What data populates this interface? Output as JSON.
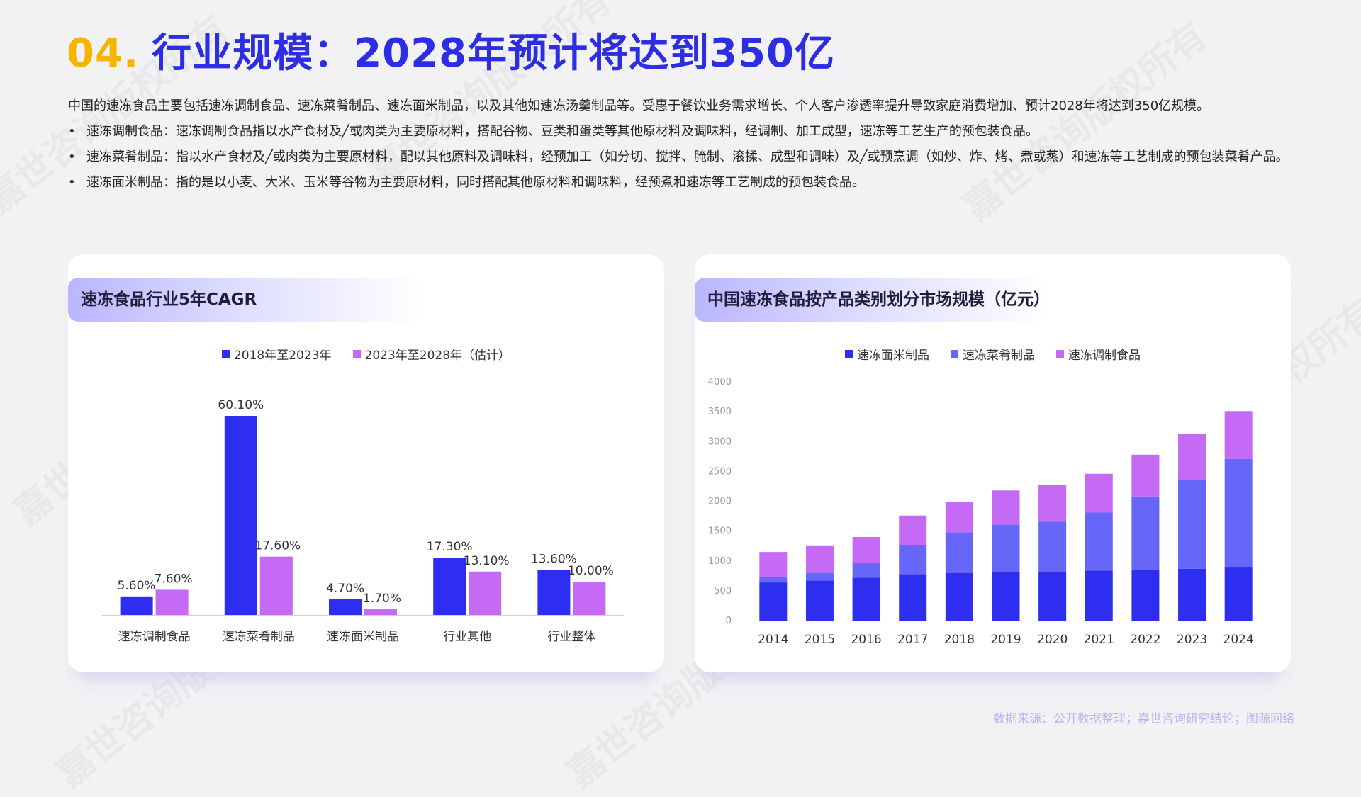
{
  "header": {
    "number": "04.",
    "title": "行业规模：2028年预计将达到350亿"
  },
  "intro": {
    "paragraph": "中国的速冻食品主要包括速冻调制食品、速冻菜肴制品、速冻面米制品，以及其他如速冻汤羹制品等。受惠于餐饮业务需求增长、个人客户渗透率提升导致家庭消费增加、预计2028年将达到350亿规模。",
    "bullets": [
      "速冻调制食品：速冻调制食品指以水产食材及╱或肉类为主要原材料，搭配谷物、豆类和蛋类等其他原材料及调味料，经调制、加工成型，速冻等工艺生产的预包装食品。",
      "速冻菜肴制品：指以水产食材及╱或肉类为主要原材料，配以其他原料及调味料，经预加工（如分切、搅拌、腌制、滚揉、成型和调味）及╱或预烹调（如炒、炸、烤、煮或蒸）和速冻等工艺制成的预包装菜肴产品。",
      "速冻面米制品：指的是以小麦、大米、玉米等谷物为主要原材料，同时搭配其他原材料和调味料，经预煮和速冻等工艺制成的预包装食品。"
    ]
  },
  "chart_left": {
    "heading": "速冻食品行业5年CAGR"
  },
  "chart_right": {
    "heading": "中国速冻食品按产品类别划分市场规模（亿元）"
  },
  "colors": {
    "blue": "#2e2ef0",
    "violet": "#6666f8",
    "purple": "#c46af5",
    "title_blue": "#2d2de3",
    "title_yellow": "#f6b400"
  },
  "chart_data": [
    {
      "type": "bar",
      "title": "速冻食品行业5年CAGR",
      "categories": [
        "速冻调制食品",
        "速冻菜肴制品",
        "速冻面米制品",
        "行业其他",
        "行业整体"
      ],
      "series": [
        {
          "name": "2018年至2023年",
          "values": [
            5.6,
            60.1,
            4.7,
            17.3,
            13.6
          ],
          "labels": [
            "5.60%",
            "60.10%",
            "4.70%",
            "17.30%",
            "13.60%"
          ],
          "color": "#2e2ef0"
        },
        {
          "name": "2023年至2028年（估计）",
          "values": [
            7.6,
            17.6,
            1.7,
            13.1,
            10.0
          ],
          "labels": [
            "7.60%",
            "17.60%",
            "1.70%",
            "13.10%",
            "10.00%"
          ],
          "color": "#c46af5"
        }
      ],
      "ylim": [
        0,
        60.1
      ],
      "legend": "top-center"
    },
    {
      "type": "bar",
      "stacked": true,
      "title": "中国速冻食品按产品类别划分市场规模（亿元）",
      "categories": [
        "2014",
        "2015",
        "2016",
        "2017",
        "2018",
        "2019",
        "2020",
        "2021",
        "2022",
        "2023",
        "2024"
      ],
      "series": [
        {
          "name": "速冻面米制品",
          "values": [
            640,
            670,
            720,
            780,
            800,
            810,
            810,
            840,
            850,
            870,
            890
          ],
          "color": "#2e2ef0"
        },
        {
          "name": "速冻菜肴制品",
          "values": [
            90,
            130,
            250,
            490,
            680,
            800,
            850,
            970,
            1230,
            1500,
            1820
          ],
          "color": "#6666f8"
        },
        {
          "name": "速冻调制食品",
          "values": [
            420,
            460,
            430,
            490,
            510,
            570,
            610,
            650,
            700,
            760,
            800
          ],
          "color": "#c46af5"
        }
      ],
      "yticks": [
        "0",
        "500",
        "1000",
        "1500",
        "2000",
        "2500",
        "3000",
        "3500",
        "4000"
      ],
      "ylim": [
        0,
        4000
      ],
      "legend": "top-center"
    }
  ],
  "source": "数据来源：公开数据整理；嘉世咨询研究结论；图源网络",
  "watermark": "嘉世咨询版权所有"
}
